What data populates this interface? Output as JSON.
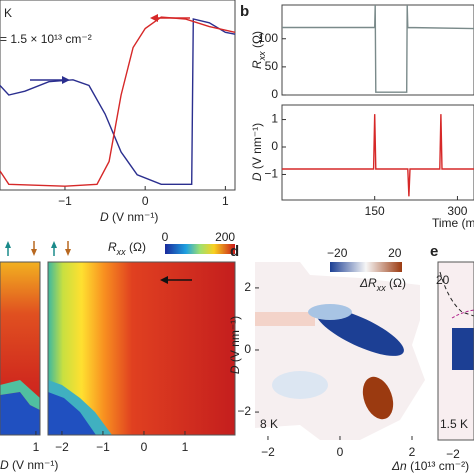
{
  "chart_data": [
    {
      "type": "line",
      "annotations": [
        "K",
        "= 1.5 × 10¹³ cm⁻²"
      ],
      "x_label": [
        "D",
        " (V nm⁻¹)"
      ],
      "xlim": [
        -1.81,
        1.12
      ],
      "ylim": [
        0,
        100
      ],
      "xticks": [
        {
          "value": -1,
          "label": "−1"
        },
        0,
        1
      ],
      "series": [
        {
          "color": "#2b2f8f",
          "x": [
            -1.81,
            -1.7,
            -1.5,
            -1.2,
            -0.9,
            -0.7,
            -0.5,
            -0.3,
            -0.1,
            0.2,
            0.58,
            0.6,
            0.8,
            1.0,
            1.12
          ],
          "values": [
            55,
            50,
            52,
            57,
            58,
            55,
            40,
            20,
            8,
            3,
            3,
            90,
            88,
            83,
            82
          ]
        },
        {
          "color": "#d62828",
          "x": [
            -1.81,
            -1.7,
            -1.0,
            -0.6,
            -0.45,
            -0.3,
            -0.15,
            0,
            0.2,
            0.5,
            0.8,
            1.12
          ],
          "values": [
            10,
            3,
            2,
            3,
            15,
            50,
            75,
            85,
            91,
            90,
            86,
            83
          ]
        }
      ]
    },
    {
      "type": "line",
      "panel_label": "b",
      "y_label": [
        "R",
        "xx",
        " (Ω)"
      ],
      "xlim": [
        -18,
        330
      ],
      "ylim": [
        0,
        160
      ],
      "yticks": [
        0,
        50,
        100
      ],
      "series": [
        {
          "color": "#7a8a8a",
          "x": [
            -18,
            150,
            151,
            152,
            153,
            208,
            209,
            210,
            330
          ],
          "values": [
            120,
            120,
            160,
            5,
            5,
            5,
            160,
            120,
            118
          ]
        }
      ]
    },
    {
      "type": "line",
      "x_label": "Time (m",
      "y_label": [
        "D",
        " (V nm⁻¹)"
      ],
      "xlim": [
        -18,
        330
      ],
      "ylim": [
        -1.93,
        1.53
      ],
      "xticks": [
        150,
        300
      ],
      "yticks": [
        {
          "value": -1,
          "label": "−1"
        },
        0,
        1
      ],
      "series": [
        {
          "color": "#d62828",
          "x": [
            -18,
            148,
            150,
            152,
            154,
            210,
            212,
            214,
            268,
            270,
            272,
            330
          ],
          "values": [
            -0.8,
            -0.8,
            1.2,
            -0.8,
            -0.8,
            -0.8,
            -1.8,
            -0.8,
            -0.8,
            1.2,
            -0.8,
            -0.8
          ]
        }
      ]
    }
  ],
  "panels": {
    "c": {
      "colorbar_label": [
        "R",
        "xx",
        " (Ω)"
      ],
      "clim": [
        0,
        233
      ],
      "colorbar_ticks": [
        0,
        200
      ],
      "left_xlim": [
        0.12,
        1.1
      ],
      "left_xticks": [
        1
      ],
      "right_xlim": [
        -2.34,
        2.22
      ],
      "right_xticks": [
        {
          "value": -2,
          "label": "−2"
        },
        {
          "value": -1,
          "label": "−1"
        },
        0,
        1
      ],
      "x_label": [
        "D",
        " (V nm⁻¹)"
      ]
    },
    "d": {
      "panel_label": "d",
      "colorbar_label": [
        "ΔR",
        "xx",
        " (Ω)"
      ],
      "clim": [
        -25,
        25
      ],
      "colorbar_ticks": [
        {
          "value": -20,
          "label": "−20"
        },
        20
      ],
      "xlim": [
        -2.36,
        2.5
      ],
      "xticks": [
        {
          "value": -2,
          "label": "−2"
        },
        0,
        2
      ],
      "ylim": [
        -2.9,
        3.06
      ],
      "yticks": [
        {
          "value": -2,
          "label": "−2"
        },
        0,
        2
      ],
      "y_label": [
        "D",
        " (V nm⁻¹)"
      ],
      "x_label": [
        "Δn",
        " (10¹³ cm⁻²)"
      ],
      "temperature": "8 K"
    },
    "e": {
      "panel_label": "e",
      "colorbar_tick": "20",
      "xtick": "−2",
      "temperature": "1.5 K"
    }
  }
}
